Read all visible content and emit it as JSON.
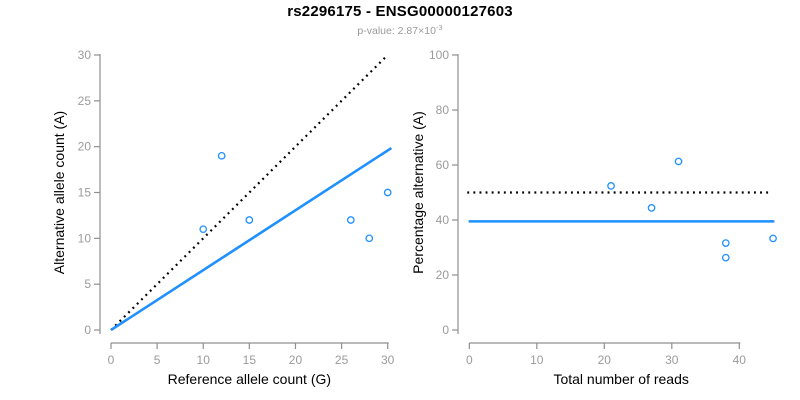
{
  "header": {
    "title": "rs2296175 - ENSG00000127603",
    "subtitle_prefix": "p-value: 2.87×10",
    "subtitle_exponent": "-3"
  },
  "colors": {
    "accent_blue": "#1E90FF",
    "line_black": "#000000",
    "axis_gray": "#8f8f8f",
    "tick_label_gray": "#9b9b9b",
    "axis_title_black": "#000000"
  },
  "chart_data": [
    {
      "type": "scatter",
      "name": "allele-counts-panel",
      "xlabel": "Reference allele count (G)",
      "ylabel": "Alternative allele count (A)",
      "xlim": [
        0,
        30
      ],
      "ylim": [
        0,
        30
      ],
      "xticks": [
        0,
        5,
        10,
        15,
        20,
        25,
        30
      ],
      "yticks": [
        0,
        5,
        10,
        15,
        20,
        25,
        30
      ],
      "grid": false,
      "legend": false,
      "points": [
        [
          10,
          11
        ],
        [
          12,
          19
        ],
        [
          15,
          12
        ],
        [
          26,
          12
        ],
        [
          28,
          10
        ],
        [
          30,
          15
        ]
      ],
      "lines": [
        {
          "name": "identity-line-dotted",
          "style": "dotted",
          "color": "#000000",
          "x1": 0,
          "y1": 0,
          "x2": 29.9,
          "y2": 29.9
        },
        {
          "name": "allelic-ratio-line",
          "style": "solid",
          "color": "#1E90FF",
          "x1": 0,
          "y1": 0,
          "x2": 30.4,
          "y2": 19.85
        }
      ]
    },
    {
      "type": "scatter",
      "name": "percentage-alternative-panel",
      "xlabel": "Total number of reads",
      "ylabel": "Percentage alternative (A)",
      "xlim": [
        0,
        45
      ],
      "ylim": [
        0,
        100
      ],
      "xticks": [
        0,
        10,
        20,
        30,
        40
      ],
      "yticks": [
        0,
        20,
        40,
        60,
        80,
        100
      ],
      "grid": false,
      "legend": false,
      "points": [
        [
          21,
          52.4
        ],
        [
          27,
          44.4
        ],
        [
          31,
          61.3
        ],
        [
          38,
          31.6
        ],
        [
          38,
          26.3
        ],
        [
          45,
          33.3
        ]
      ],
      "lines": [
        {
          "name": "fifty-percent-line-dotted",
          "style": "dotted",
          "color": "#000000",
          "x1": -0.3,
          "y1": 50,
          "x2": 44.3,
          "y2": 50
        },
        {
          "name": "mean-percentage-line",
          "style": "solid",
          "color": "#1E90FF",
          "x1": -0.1,
          "y1": 39.5,
          "x2": 45.2,
          "y2": 39.5
        }
      ]
    }
  ]
}
